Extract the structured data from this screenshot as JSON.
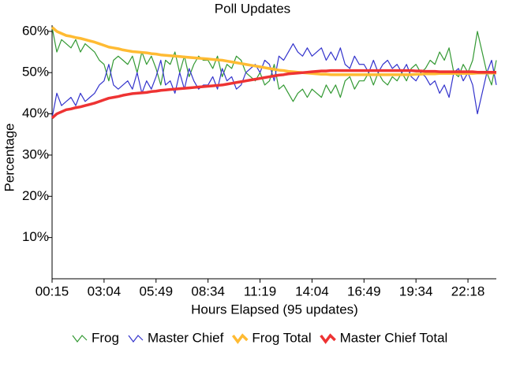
{
  "chart_data": {
    "type": "line",
    "title": "Poll Updates",
    "x_label": "Hours Elapsed (95 updates)",
    "y_label": "Percentage",
    "categories": [
      "00:15",
      null,
      null,
      null,
      null,
      null,
      null,
      null,
      null,
      null,
      null,
      "03:04",
      null,
      null,
      null,
      null,
      null,
      null,
      null,
      null,
      null,
      null,
      "05:49",
      null,
      null,
      null,
      null,
      null,
      null,
      null,
      null,
      null,
      null,
      "08:34",
      null,
      null,
      null,
      null,
      null,
      null,
      null,
      null,
      null,
      null,
      "11:19",
      null,
      null,
      null,
      null,
      null,
      null,
      null,
      null,
      null,
      null,
      "14:04",
      null,
      null,
      null,
      null,
      null,
      null,
      null,
      null,
      null,
      null,
      "16:49",
      null,
      null,
      null,
      null,
      null,
      null,
      null,
      null,
      null,
      null,
      "19:34",
      null,
      null,
      null,
      null,
      null,
      null,
      null,
      null,
      null,
      null,
      "22:18",
      null,
      null,
      null,
      null,
      null,
      null
    ],
    "series": [
      {
        "name": "Frog",
        "color": "#339933",
        "values": [
          61,
          55,
          58,
          57,
          56,
          58,
          55,
          57,
          56,
          55,
          53,
          52,
          48,
          53,
          54,
          53,
          52,
          54,
          50,
          55,
          52,
          54,
          51,
          47,
          53,
          52,
          55,
          50,
          54,
          49,
          52,
          54,
          53,
          53,
          51,
          54,
          49,
          52,
          51,
          54,
          53,
          50,
          49,
          48,
          50,
          47,
          48,
          52,
          46,
          47,
          45,
          43,
          45,
          46,
          44,
          46,
          45,
          44,
          47,
          45,
          47,
          44,
          48,
          49,
          46,
          48,
          48,
          50,
          47,
          50,
          48,
          47,
          49,
          48,
          50,
          48,
          51,
          52,
          50,
          51,
          53,
          52,
          55,
          53,
          56,
          50,
          49,
          52,
          50,
          53,
          60,
          55,
          50,
          47,
          53
        ]
      },
      {
        "name": "Master Chief",
        "color": "#3333cc",
        "values": [
          39,
          45,
          42,
          43,
          44,
          42,
          45,
          43,
          44,
          45,
          47,
          48,
          52,
          47,
          46,
          47,
          48,
          46,
          50,
          45,
          48,
          46,
          49,
          53,
          47,
          48,
          45,
          50,
          46,
          51,
          48,
          46,
          47,
          47,
          49,
          46,
          51,
          48,
          49,
          46,
          47,
          50,
          51,
          52,
          50,
          53,
          52,
          48,
          54,
          53,
          55,
          57,
          55,
          54,
          56,
          54,
          55,
          56,
          53,
          55,
          53,
          56,
          52,
          51,
          54,
          52,
          52,
          50,
          53,
          50,
          52,
          53,
          51,
          52,
          50,
          52,
          49,
          48,
          50,
          49,
          47,
          48,
          45,
          47,
          44,
          50,
          51,
          48,
          50,
          47,
          40,
          45,
          50,
          53,
          47
        ]
      },
      {
        "name": "Frog Total",
        "color": "#ffbb33",
        "values": [
          61,
          60,
          59.5,
          59,
          58.8,
          58.5,
          58.3,
          58,
          57.7,
          57.4,
          57,
          56.6,
          56.2,
          56,
          55.8,
          55.5,
          55.3,
          55.1,
          55,
          54.9,
          54.8,
          54.6,
          54.5,
          54.3,
          54.2,
          54.1,
          54,
          53.9,
          53.8,
          53.7,
          53.6,
          53.5,
          53.4,
          53.3,
          53.2,
          53.1,
          53,
          52.8,
          52.6,
          52.4,
          52.2,
          52,
          51.8,
          51.6,
          51.4,
          51.2,
          51,
          50.8,
          50.6,
          50.5,
          50.3,
          50.2,
          50.1,
          50,
          49.9,
          49.8,
          49.7,
          49.6,
          49.6,
          49.5,
          49.5,
          49.5,
          49.5,
          49.5,
          49.5,
          49.5,
          49.5,
          49.5,
          49.5,
          49.5,
          49.5,
          49.5,
          49.5,
          49.5,
          49.5,
          49.5,
          49.5,
          49.6,
          49.6,
          49.7,
          49.7,
          49.7,
          49.8,
          49.8,
          49.8,
          49.8,
          49.8,
          49.8,
          49.8,
          49.8,
          49.9,
          49.9,
          49.9,
          49.9,
          49.9
        ]
      },
      {
        "name": "Master Chief Total",
        "color": "#ee3333",
        "values": [
          39,
          40,
          40.5,
          41,
          41.2,
          41.5,
          41.7,
          42,
          42.3,
          42.6,
          43,
          43.4,
          43.8,
          44,
          44.2,
          44.5,
          44.7,
          44.9,
          45,
          45.1,
          45.2,
          45.4,
          45.5,
          45.7,
          45.8,
          45.9,
          46,
          46.1,
          46.2,
          46.3,
          46.4,
          46.5,
          46.6,
          46.7,
          46.8,
          46.9,
          47,
          47.2,
          47.4,
          47.6,
          47.8,
          48,
          48.2,
          48.4,
          48.6,
          48.8,
          49,
          49.2,
          49.4,
          49.5,
          49.7,
          49.8,
          49.9,
          50,
          50.1,
          50.2,
          50.3,
          50.4,
          50.4,
          50.5,
          50.5,
          50.5,
          50.5,
          50.5,
          50.5,
          50.5,
          50.5,
          50.5,
          50.5,
          50.5,
          50.5,
          50.5,
          50.5,
          50.5,
          50.5,
          50.5,
          50.5,
          50.4,
          50.4,
          50.3,
          50.3,
          50.3,
          50.2,
          50.2,
          50.2,
          50.2,
          50.2,
          50.2,
          50.2,
          50.2,
          50.1,
          50.1,
          50.1,
          50.1,
          50.1
        ]
      }
    ],
    "ylim": [
      0,
      61.5
    ],
    "yticks": [
      {
        "value": 10,
        "label": "10%"
      },
      {
        "value": 20,
        "label": "20%"
      },
      {
        "value": 30,
        "label": "30%"
      },
      {
        "value": 40,
        "label": "40%"
      },
      {
        "value": 50,
        "label": "50%"
      },
      {
        "value": 60,
        "label": "60%"
      }
    ]
  }
}
